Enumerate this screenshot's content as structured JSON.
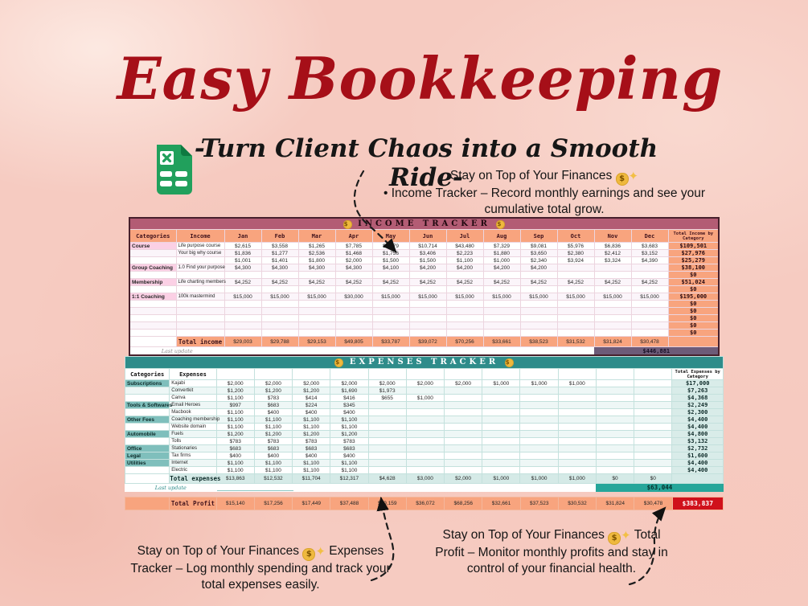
{
  "page": {
    "title": "Easy Bookkeeping",
    "subtitle": "-Turn Client Chaos into a Smooth Ride-"
  },
  "colors": {
    "title_red": "#a60f18",
    "background_pink": "#f6cbc1",
    "income_title_bar": "#b35c74",
    "income_header": "#f8a47e",
    "income_category_cell": "#fbd0e5",
    "income_grand_total_bar": "#6d5b78",
    "expenses_title_bar": "#2e8c8a",
    "expenses_category_cell": "#7fbfbc",
    "expenses_grand_total_bar": "#26a69a",
    "profit_row": "#f8a47e",
    "profit_badge_red": "#d0111b",
    "excel_green": "#21a05c"
  },
  "notes": {
    "income_note": {
      "line1": "Stay on Top of Your Finances",
      "icons": [
        "money-bag",
        "sparkles"
      ],
      "line2": "• Income Tracker – Record monthly earnings and see your cumulative total grow."
    },
    "expenses_note": {
      "pre": "Stay on Top of Your Finances",
      "icons": [
        "money-bag",
        "sparkles"
      ],
      "post": "Expenses Tracker – Log monthly spending and track your total expenses easily."
    },
    "profit_note": {
      "pre": "Stay on Top of Your Finances",
      "icons": [
        "money-bag",
        "sparkles"
      ],
      "post": "Total Profit – Monitor monthly profits and stay in control of your financial health."
    }
  },
  "income_tracker": {
    "title": "INCOME TRACKER",
    "title_icon": "money-bag-icon",
    "col_category": "Categories",
    "col_label": "Income",
    "months": [
      "Jan",
      "Feb",
      "Mar",
      "Apr",
      "May",
      "Jun",
      "Jul",
      "Aug",
      "Sep",
      "Oct",
      "Nov",
      "Dec"
    ],
    "col_total": "Total Income by Category",
    "rows": [
      {
        "category": "Course",
        "label": "Life purpose course",
        "values": [
          "$2,615",
          "$3,558",
          "$1,265",
          "$7,785",
          "$7,179",
          "$10,714",
          "$43,480",
          "$7,329",
          "$9,081",
          "$5,976",
          "$6,836",
          "$3,683"
        ],
        "total": "$109,501"
      },
      {
        "category": "",
        "label": "Your big why course",
        "values": [
          "$1,836",
          "$1,277",
          "$2,536",
          "$1,468",
          "$1,756",
          "$3,406",
          "$2,223",
          "$1,880",
          "$3,650",
          "$2,380",
          "$2,412",
          "$3,152"
        ],
        "total": "$27,976"
      },
      {
        "category": "",
        "label": "",
        "values": [
          "$1,001",
          "$1,401",
          "$1,800",
          "$2,000",
          "$1,500",
          "$1,500",
          "$1,100",
          "$1,000",
          "$2,340",
          "$3,924",
          "$3,324",
          "$4,390"
        ],
        "total": "$25,279"
      },
      {
        "category": "Group Coaching",
        "label": "1.0 Find your purpose",
        "values": [
          "$4,300",
          "$4,300",
          "$4,300",
          "$4,300",
          "$4,100",
          "$4,200",
          "$4,200",
          "$4,200",
          "$4,200",
          "",
          "",
          ""
        ],
        "total": "$38,100"
      },
      {
        "category": "",
        "label": "",
        "values": [
          "",
          "",
          "",
          "",
          "",
          "",
          "",
          "",
          "",
          "",
          "",
          ""
        ],
        "total": "$0"
      },
      {
        "category": "Membership",
        "label": "Life charting members",
        "values": [
          "$4,252",
          "$4,252",
          "$4,252",
          "$4,252",
          "$4,252",
          "$4,252",
          "$4,252",
          "$4,252",
          "$4,252",
          "$4,252",
          "$4,252",
          "$4,252"
        ],
        "total": "$51,024"
      },
      {
        "category": "",
        "label": "",
        "values": [
          "",
          "",
          "",
          "",
          "",
          "",
          "",
          "",
          "",
          "",
          "",
          ""
        ],
        "total": "$0"
      },
      {
        "category": "1:1 Coaching",
        "label": "100k mastermind",
        "values": [
          "$15,000",
          "$15,000",
          "$15,000",
          "$30,000",
          "$15,000",
          "$15,000",
          "$15,000",
          "$15,000",
          "$15,000",
          "$15,000",
          "$15,000",
          "$15,000"
        ],
        "total": "$195,000"
      },
      {
        "category": "",
        "label": "",
        "values": [
          "",
          "",
          "",
          "",
          "",
          "",
          "",
          "",
          "",
          "",
          "",
          ""
        ],
        "total": "$0"
      },
      {
        "category": "",
        "label": "",
        "values": [
          "",
          "",
          "",
          "",
          "",
          "",
          "",
          "",
          "",
          "",
          "",
          ""
        ],
        "total": "$0"
      },
      {
        "category": "",
        "label": "",
        "values": [
          "",
          "",
          "",
          "",
          "",
          "",
          "",
          "",
          "",
          "",
          "",
          ""
        ],
        "total": "$0"
      },
      {
        "category": "",
        "label": "",
        "values": [
          "",
          "",
          "",
          "",
          "",
          "",
          "",
          "",
          "",
          "",
          "",
          ""
        ],
        "total": "$0"
      },
      {
        "category": "",
        "label": "",
        "values": [
          "",
          "",
          "",
          "",
          "",
          "",
          "",
          "",
          "",
          "",
          "",
          ""
        ],
        "total": "$0"
      }
    ],
    "total_row": {
      "label": "Total income",
      "values": [
        "$29,003",
        "$29,788",
        "$29,153",
        "$49,805",
        "$33,787",
        "$39,072",
        "$70,256",
        "$33,661",
        "$38,523",
        "$31,532",
        "$31,824",
        "$30,478"
      ]
    },
    "last_update_label": "Last update",
    "grand_total": "$446,881"
  },
  "expenses_tracker": {
    "title": "EXPENSES TRACKER",
    "title_icon": "money-bag-icon",
    "col_category": "Categories",
    "col_label": "Expenses",
    "months": [
      "",
      "",
      "",
      "",
      "",
      "",
      "",
      "",
      "",
      "",
      "",
      ""
    ],
    "col_total": "Total Expenses by Category",
    "rows": [
      {
        "category": "Subscriptions",
        "label": "Kajabi",
        "values": [
          "$2,000",
          "$2,000",
          "$2,000",
          "$2,000",
          "$2,000",
          "$2,000",
          "$2,000",
          "$1,000",
          "$1,000",
          "$1,000",
          "",
          ""
        ],
        "total": "$17,000"
      },
      {
        "category": "",
        "label": "Convertkit",
        "values": [
          "$1,200",
          "$1,200",
          "$1,200",
          "$1,690",
          "$1,973",
          "",
          "",
          "",
          "",
          "",
          "",
          ""
        ],
        "total": "$7,263"
      },
      {
        "category": "",
        "label": "Canva",
        "values": [
          "$1,100",
          "$783",
          "$414",
          "$416",
          "$655",
          "$1,000",
          "",
          "",
          "",
          "",
          "",
          ""
        ],
        "total": "$4,368"
      },
      {
        "category": "Tools & Softwares",
        "label": "Email Heroes",
        "values": [
          "$997",
          "$683",
          "$224",
          "$345",
          "",
          "",
          "",
          "",
          "",
          "",
          "",
          ""
        ],
        "total": "$2,249"
      },
      {
        "category": "",
        "label": "Macbook",
        "values": [
          "$1,100",
          "$400",
          "$400",
          "$400",
          "",
          "",
          "",
          "",
          "",
          "",
          "",
          ""
        ],
        "total": "$2,300"
      },
      {
        "category": "Other Fees",
        "label": "Coaching membership",
        "values": [
          "$1,100",
          "$1,100",
          "$1,100",
          "$1,100",
          "",
          "",
          "",
          "",
          "",
          "",
          "",
          ""
        ],
        "total": "$4,400"
      },
      {
        "category": "",
        "label": "Website domain",
        "values": [
          "$1,100",
          "$1,100",
          "$1,100",
          "$1,100",
          "",
          "",
          "",
          "",
          "",
          "",
          "",
          ""
        ],
        "total": "$4,400"
      },
      {
        "category": "Automobile",
        "label": "Fuels",
        "values": [
          "$1,200",
          "$1,200",
          "$1,200",
          "$1,200",
          "",
          "",
          "",
          "",
          "",
          "",
          "",
          ""
        ],
        "total": "$4,800"
      },
      {
        "category": "",
        "label": "Tolls",
        "values": [
          "$783",
          "$783",
          "$783",
          "$783",
          "",
          "",
          "",
          "",
          "",
          "",
          "",
          ""
        ],
        "total": "$3,132"
      },
      {
        "category": "Office",
        "label": "Stationaries",
        "values": [
          "$683",
          "$683",
          "$683",
          "$683",
          "",
          "",
          "",
          "",
          "",
          "",
          "",
          ""
        ],
        "total": "$2,732"
      },
      {
        "category": "Legal",
        "label": "Tax firms",
        "values": [
          "$400",
          "$400",
          "$400",
          "$400",
          "",
          "",
          "",
          "",
          "",
          "",
          "",
          ""
        ],
        "total": "$1,600"
      },
      {
        "category": "Utilities",
        "label": "Internet",
        "values": [
          "$1,100",
          "$1,100",
          "$1,100",
          "$1,100",
          "",
          "",
          "",
          "",
          "",
          "",
          "",
          ""
        ],
        "total": "$4,400"
      },
      {
        "category": "",
        "label": "Electric",
        "values": [
          "$1,100",
          "$1,100",
          "$1,100",
          "$1,100",
          "",
          "",
          "",
          "",
          "",
          "",
          "",
          ""
        ],
        "total": "$4,400"
      }
    ],
    "total_row": {
      "label": "Total expenses",
      "values": [
        "$13,863",
        "$12,532",
        "$11,704",
        "$12,317",
        "$4,628",
        "$3,000",
        "$2,000",
        "$1,000",
        "$1,000",
        "$1,000",
        "$0",
        "$0"
      ]
    },
    "last_update_label": "Last update",
    "grand_total": "$63,044"
  },
  "profit_row": {
    "label": "Total Profit",
    "values": [
      "$15,140",
      "$17,256",
      "$17,449",
      "$37,488",
      "$29,159",
      "$36,072",
      "$68,256",
      "$32,661",
      "$37,523",
      "$30,532",
      "$31,824",
      "$30,478"
    ],
    "total": "$383,837"
  }
}
